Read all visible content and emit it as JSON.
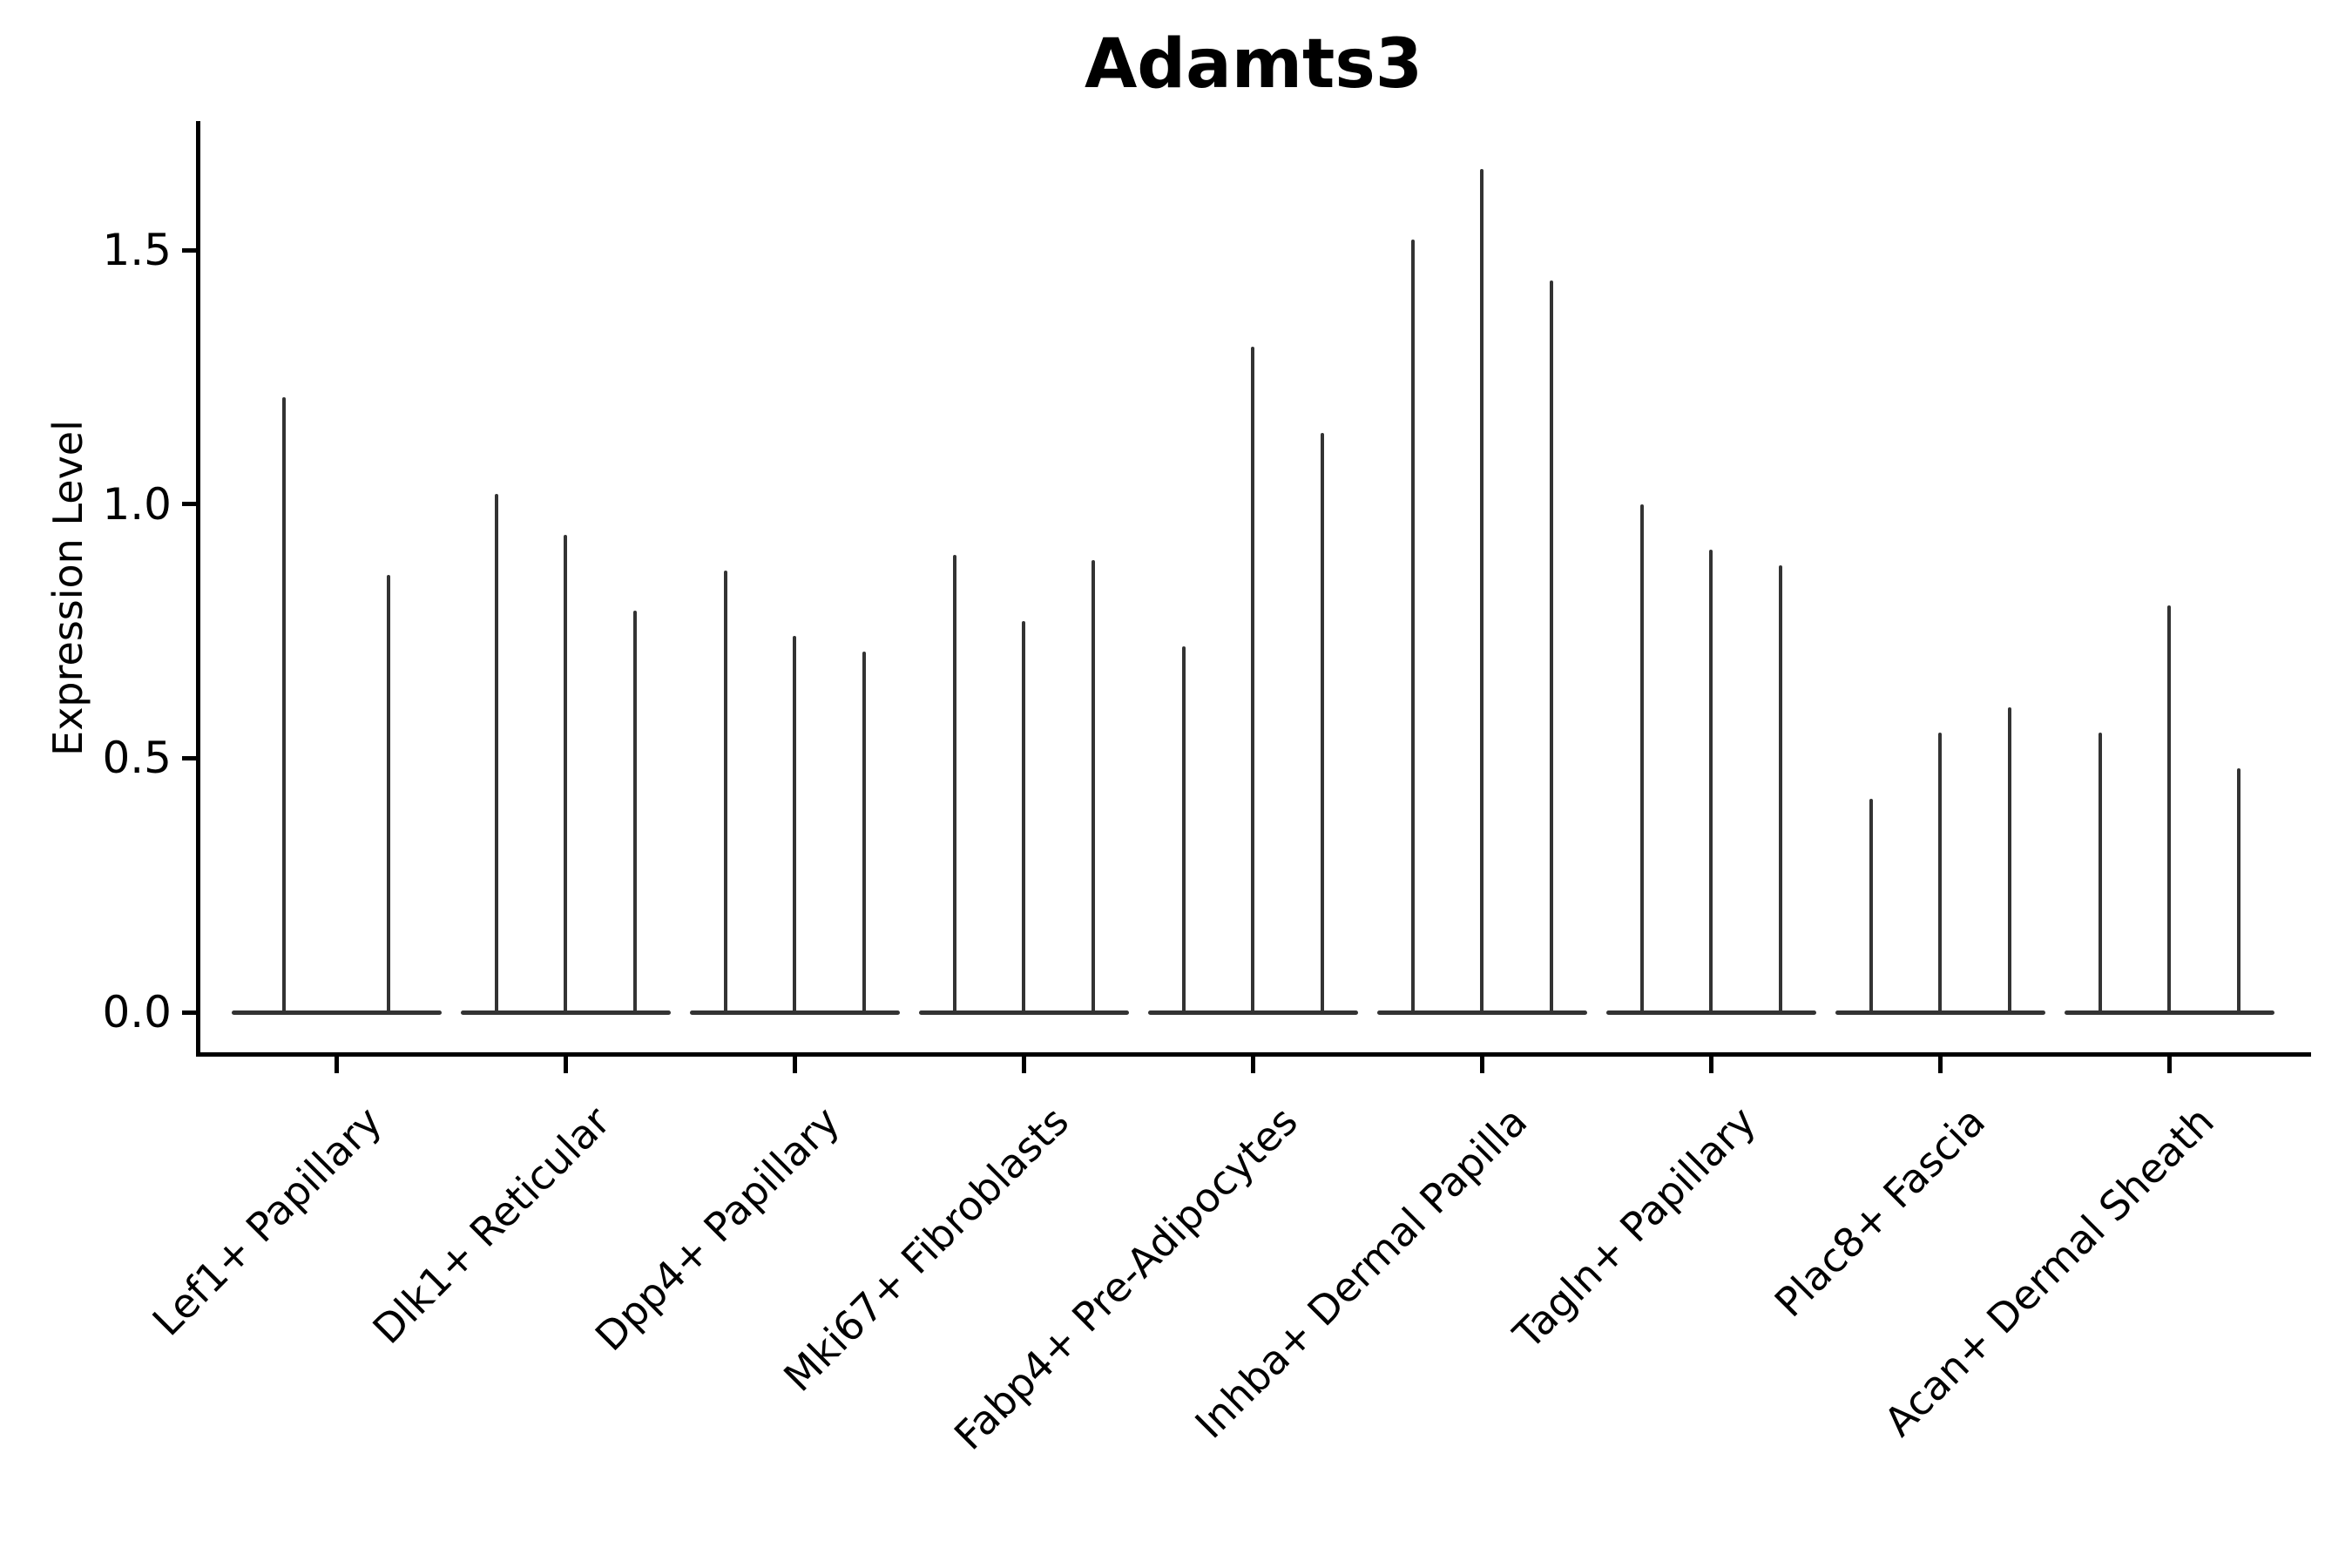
{
  "title": "Adamts3",
  "y_axis": {
    "label": "Expression Level",
    "tick_labels": [
      "0.0",
      "0.5",
      "1.0",
      "1.5"
    ]
  },
  "categories": [
    "Lef1+ Papillary",
    "Dlk1+ Reticular",
    "Dpp4+ Papillary",
    "Mki67+ Fibroblasts",
    "Fabp4+ Pre-Adipocytes",
    "Inhba+ Dermal Papilla",
    "Tagln+ Papillary",
    "Plac8+ Fascia",
    "Acan+ Dermal Sheath"
  ],
  "chart_data": {
    "type": "violin",
    "title": "Adamts3",
    "xlabel": "",
    "ylabel": "Expression Level",
    "ylim": [
      -0.08,
      1.76
    ],
    "yticks": [
      0.0,
      0.5,
      1.0,
      1.5
    ],
    "grid": false,
    "legend": "none",
    "categories": [
      "Lef1+ Papillary",
      "Dlk1+ Reticular",
      "Dpp4+ Papillary",
      "Mki67+ Fibroblasts",
      "Fabp4+ Pre-Adipocytes",
      "Inhba+ Dermal Papilla",
      "Tagln+ Papillary",
      "Plac8+ Fascia",
      "Acan+ Dermal Sheath"
    ],
    "series": [
      {
        "category": "Lef1+ Papillary",
        "violin_max_values": [
          1.21,
          0.86
        ]
      },
      {
        "category": "Dlk1+ Reticular",
        "violin_max_values": [
          1.02,
          0.94,
          0.79
        ]
      },
      {
        "category": "Dpp4+ Papillary",
        "violin_max_values": [
          0.87,
          0.74,
          0.71
        ]
      },
      {
        "category": "Mki67+ Fibroblasts",
        "violin_max_values": [
          0.9,
          0.77,
          0.89
        ]
      },
      {
        "category": "Fabp4+ Pre-Adipocytes",
        "violin_max_values": [
          0.72,
          1.31,
          1.14
        ]
      },
      {
        "category": "Inhba+ Dermal Papilla",
        "violin_max_values": [
          1.52,
          1.66,
          1.44
        ]
      },
      {
        "category": "Tagln+ Papillary",
        "violin_max_values": [
          1.0,
          0.91,
          0.88
        ]
      },
      {
        "category": "Plac8+ Fascia",
        "violin_max_values": [
          0.42,
          0.55,
          0.6
        ]
      },
      {
        "category": "Acan+ Dermal Sheath",
        "violin_max_values": [
          0.55,
          0.8,
          0.48
        ]
      }
    ],
    "description": "Violin plot of Adamts3 expression; all violins are collapsed to narrow spikes rising from a flat base at 0 expression",
    "colors": {
      "violin": "#333333",
      "axis": "#000000",
      "text": "#000000",
      "background": "#ffffff"
    }
  }
}
